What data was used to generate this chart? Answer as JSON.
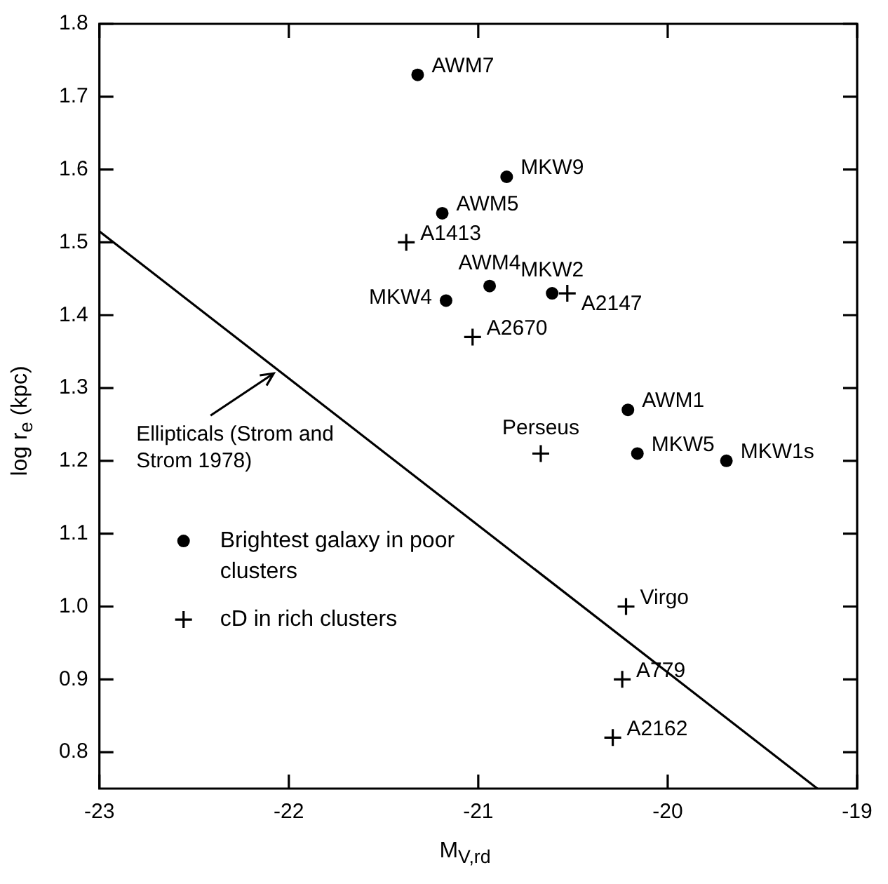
{
  "chart_data": {
    "type": "scatter",
    "xlabel": "M$_{V,rd}$",
    "ylabel": "log r$_{e}$ (kpc)",
    "xlim": [
      -23,
      -19
    ],
    "xticks": [
      -23,
      -22,
      -21,
      -20,
      -19
    ],
    "ylim": [
      0.75,
      1.8
    ],
    "yticks": [
      0.8,
      0.9,
      {
        "value": 1.0,
        "label": "1.0"
      },
      1.1,
      1.2,
      1.3,
      1.4,
      1.5,
      1.6,
      1.7,
      1.8
    ],
    "grid": false,
    "legend": "left",
    "series": [
      {
        "name": "Brightest galaxy in poor clusters",
        "color": "#000000",
        "marker": "circle",
        "x": [
          -21.32,
          -20.85,
          -21.19,
          -20.94,
          -21.17,
          -20.61,
          -20.21,
          -20.16,
          -19.69
        ],
        "values": [
          1.73,
          1.59,
          1.54,
          1.44,
          1.42,
          1.43,
          1.27,
          1.21,
          1.2
        ],
        "value_labels": [
          "AWM7",
          "MKW9",
          "AWM5",
          "AWM4",
          "MKW4",
          "MKW2",
          "AWM1",
          "MKW5",
          "MKW1s"
        ]
      },
      {
        "name": "cD in rich clusters",
        "color": "#000000",
        "marker": "cross",
        "x": [
          -21.38,
          -20.53,
          -21.03,
          -20.67,
          -20.22,
          -20.24,
          -20.29
        ],
        "values": [
          1.5,
          1.43,
          1.37,
          1.21,
          1.0,
          0.9,
          0.82
        ],
        "value_labels": [
          "A1413",
          "A2147",
          "A2670",
          "Perseus",
          "Virgo",
          "A779",
          "A2162"
        ]
      },
      {
        "type": "line",
        "color": "#000000",
        "marker": "none",
        "line_style": "solid",
        "x": [
          -23,
          -19.21
        ],
        "values": [
          1.515,
          0.75
        ]
      }
    ],
    "annotations": [
      {
        "text": "Ellipticals (Strom and Strom 1978)",
        "x": -22.08,
        "y": 1.32
      }
    ]
  }
}
